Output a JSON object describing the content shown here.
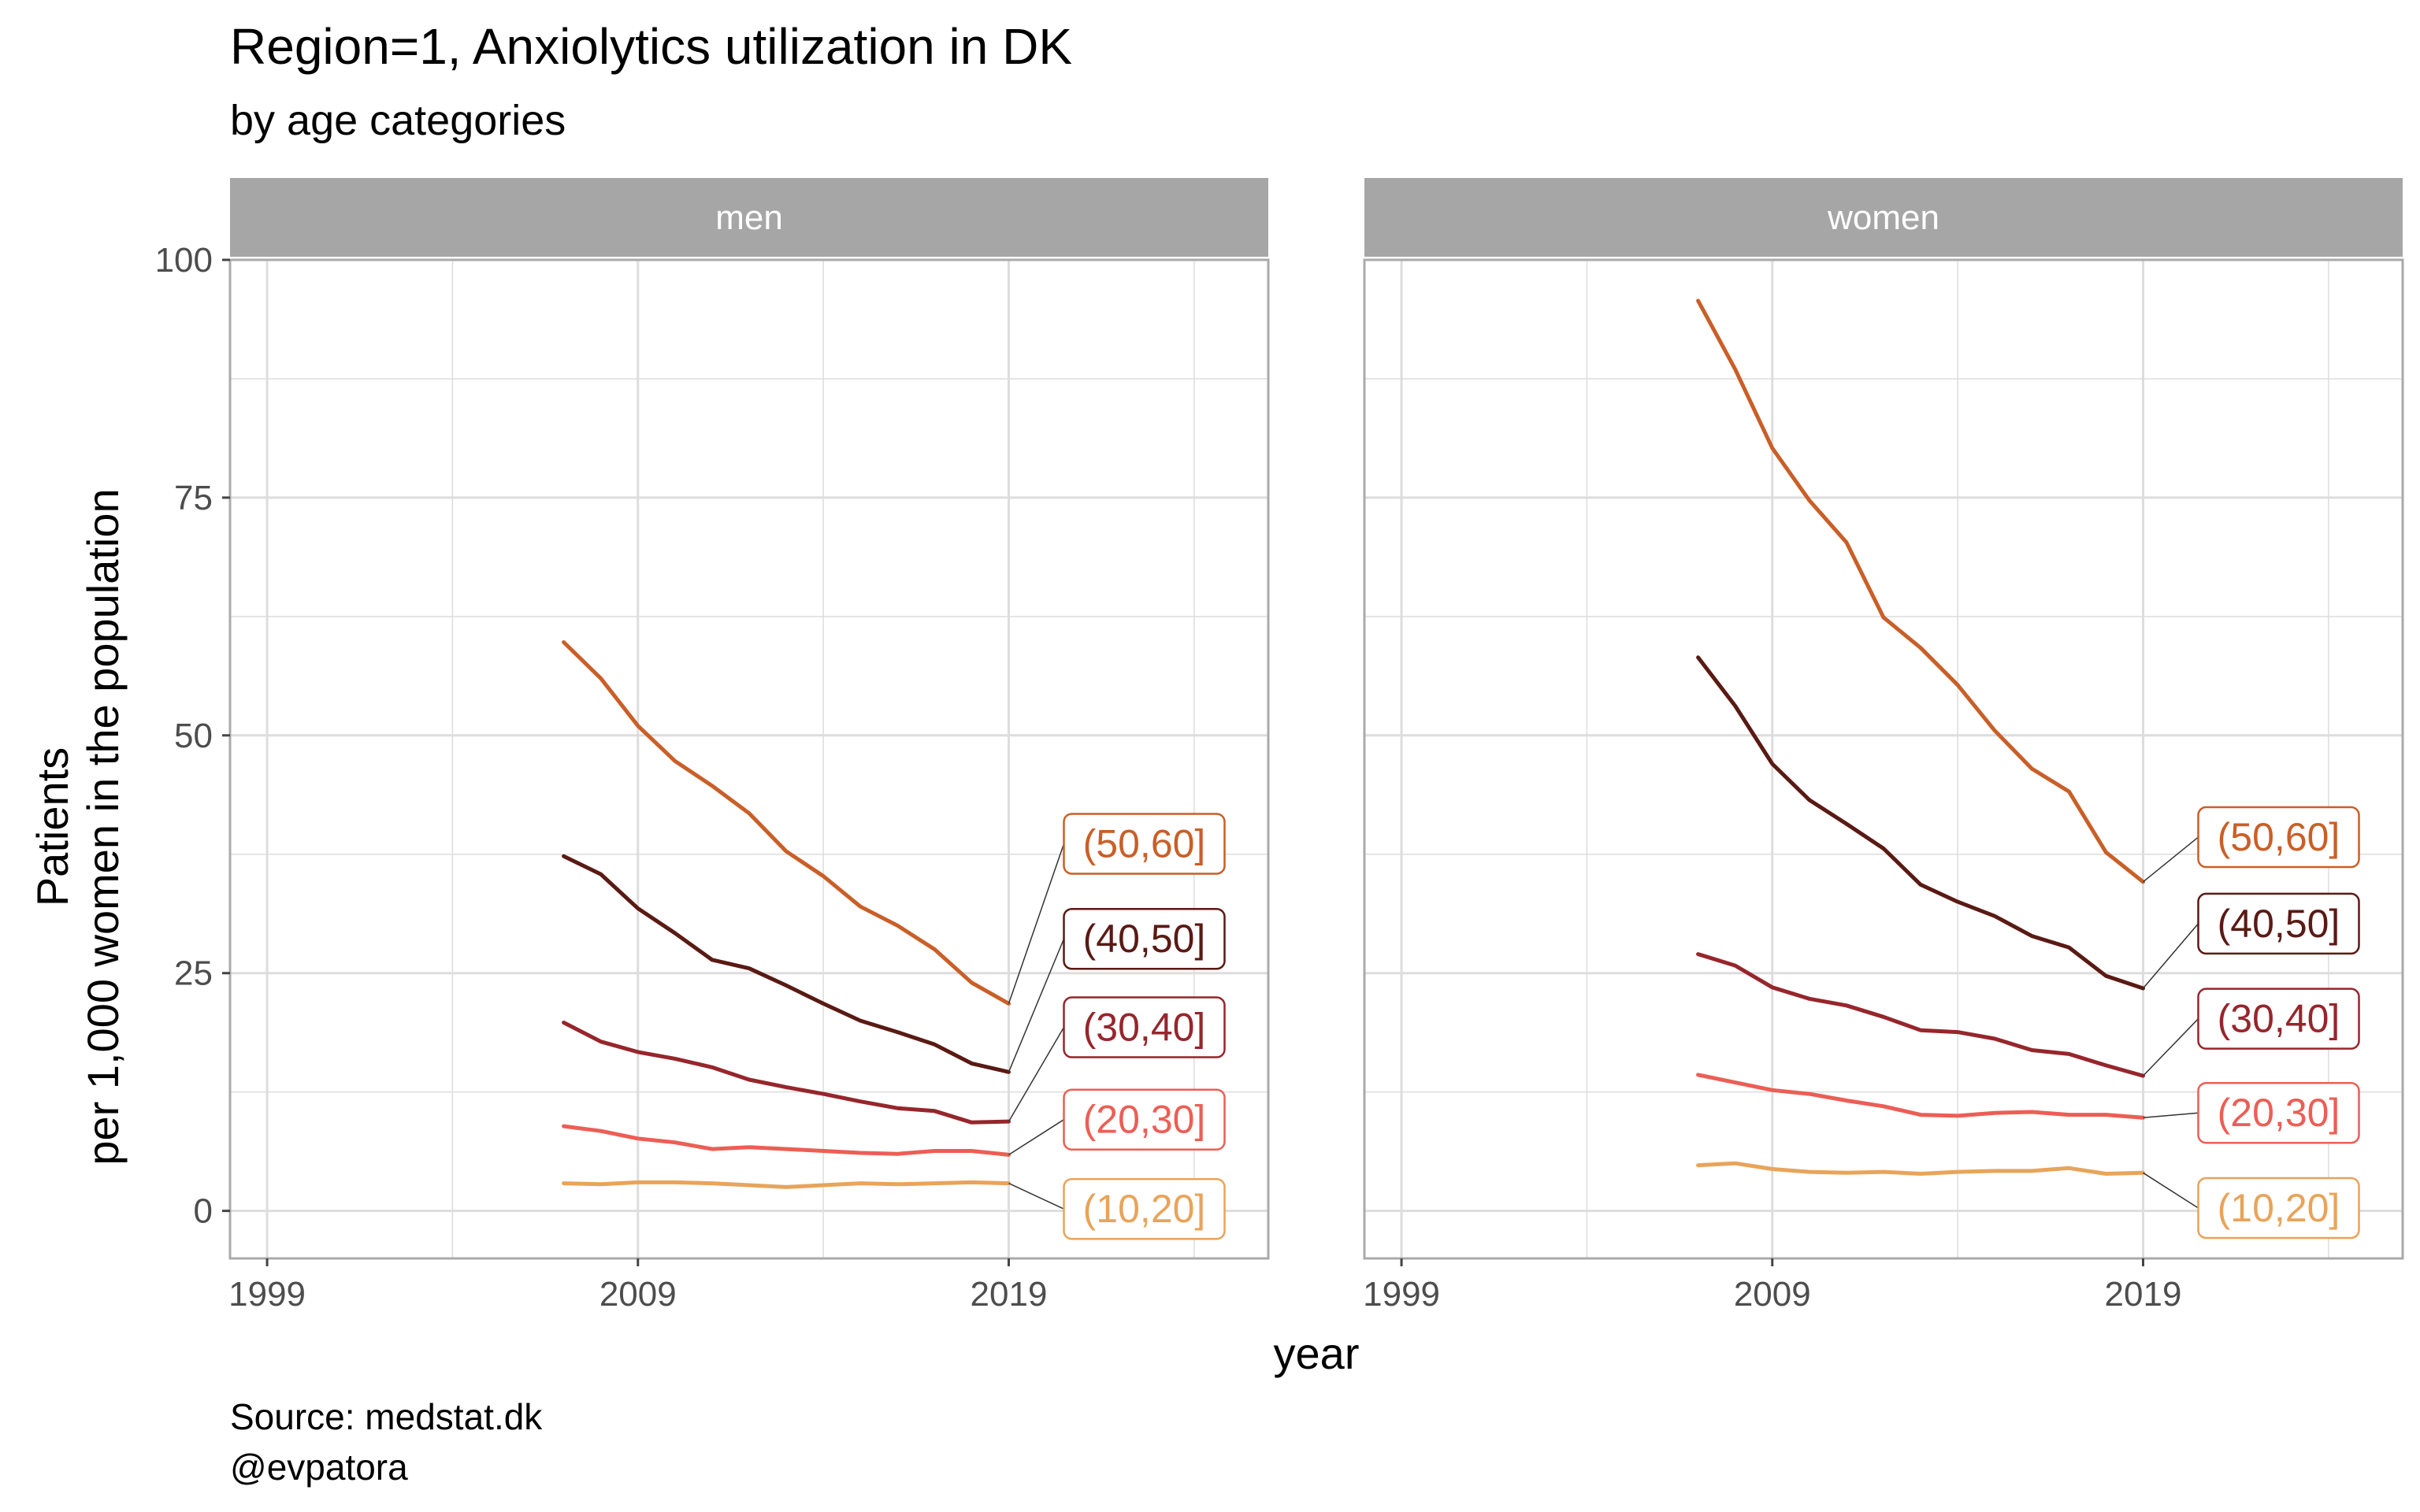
{
  "title": "Region=1, Anxiolytics utilization in DK",
  "subtitle": "by age categories",
  "caption": [
    "Source: medstat.dk",
    "@evpatora"
  ],
  "colors": {
    "(10,20]": "#E8A45A",
    "(20,30]": "#EC5E55",
    "(30,40]": "#96262C",
    "(40,50]": "#5A1A14",
    "(50,60]": "#C95F28",
    "strip_bg": "#A6A6A6",
    "grid": "#DDDDDD",
    "panel_border": "#AAAAAA"
  },
  "chart_data": {
    "type": "line",
    "xlabel": "year",
    "ylabel": "Patients\nper 1,000 women in the population",
    "xlim": [
      1998,
      2026
    ],
    "ylim": [
      -5,
      100
    ],
    "x_ticks": [
      1999,
      2009,
      2019
    ],
    "y_ticks": [
      0,
      25,
      50,
      75,
      100
    ],
    "x": [
      2007,
      2008,
      2009,
      2010,
      2011,
      2012,
      2013,
      2014,
      2015,
      2016,
      2017,
      2018,
      2019
    ],
    "panels": [
      {
        "label": "men",
        "series": [
          {
            "name": "(50,60]",
            "values": [
              59.8,
              56.0,
              51.0,
              47.3,
              44.7,
              41.8,
              37.8,
              35.2,
              32.0,
              30.0,
              27.5,
              24.0,
              21.8
            ]
          },
          {
            "name": "(40,50]",
            "values": [
              37.3,
              35.4,
              31.8,
              29.2,
              26.4,
              25.5,
              23.7,
              21.8,
              20.0,
              18.8,
              17.5,
              15.5,
              14.6
            ]
          },
          {
            "name": "(30,40]",
            "values": [
              19.8,
              17.8,
              16.7,
              16.0,
              15.1,
              13.8,
              13.0,
              12.3,
              11.5,
              10.8,
              10.5,
              9.3,
              9.4
            ]
          },
          {
            "name": "(20,30]",
            "values": [
              8.9,
              8.4,
              7.6,
              7.2,
              6.5,
              6.7,
              6.5,
              6.3,
              6.1,
              6.0,
              6.3,
              6.3,
              5.9
            ]
          },
          {
            "name": "(10,20]",
            "values": [
              2.9,
              2.8,
              3.0,
              3.0,
              2.9,
              2.7,
              2.5,
              2.7,
              2.9,
              2.8,
              2.9,
              3.0,
              2.9
            ]
          }
        ]
      },
      {
        "label": "women",
        "series": [
          {
            "name": "(50,60]",
            "values": [
              95.7,
              88.5,
              80.2,
              74.7,
              70.3,
              62.4,
              59.2,
              55.3,
              50.5,
              46.5,
              44.1,
              37.7,
              34.6
            ]
          },
          {
            "name": "(40,50]",
            "values": [
              58.2,
              53.1,
              47.0,
              43.2,
              40.7,
              38.1,
              34.3,
              32.5,
              31.0,
              28.9,
              27.7,
              24.7,
              23.4
            ]
          },
          {
            "name": "(30,40]",
            "values": [
              27.0,
              25.8,
              23.5,
              22.3,
              21.6,
              20.4,
              19.0,
              18.8,
              18.1,
              16.9,
              16.5,
              15.3,
              14.2
            ]
          },
          {
            "name": "(20,30]",
            "values": [
              14.3,
              13.5,
              12.7,
              12.3,
              11.6,
              11.0,
              10.1,
              10.0,
              10.3,
              10.4,
              10.1,
              10.1,
              9.8
            ]
          },
          {
            "name": "(10,20]",
            "values": [
              4.8,
              5.0,
              4.4,
              4.1,
              4.0,
              4.1,
              3.9,
              4.1,
              4.2,
              4.2,
              4.5,
              3.9,
              4.0
            ]
          }
        ]
      }
    ],
    "end_labels": {
      "men": {
        "(50,60]": 38.6,
        "(40,50]": 28.6,
        "(30,40]": 19.3,
        "(20,30]": 9.6,
        "(10,20]": 0.2
      },
      "women": {
        "(50,60]": 39.3,
        "(40,50]": 30.2,
        "(30,40]": 20.2,
        "(20,30]": 10.3,
        "(10,20]": 0.3
      }
    }
  }
}
